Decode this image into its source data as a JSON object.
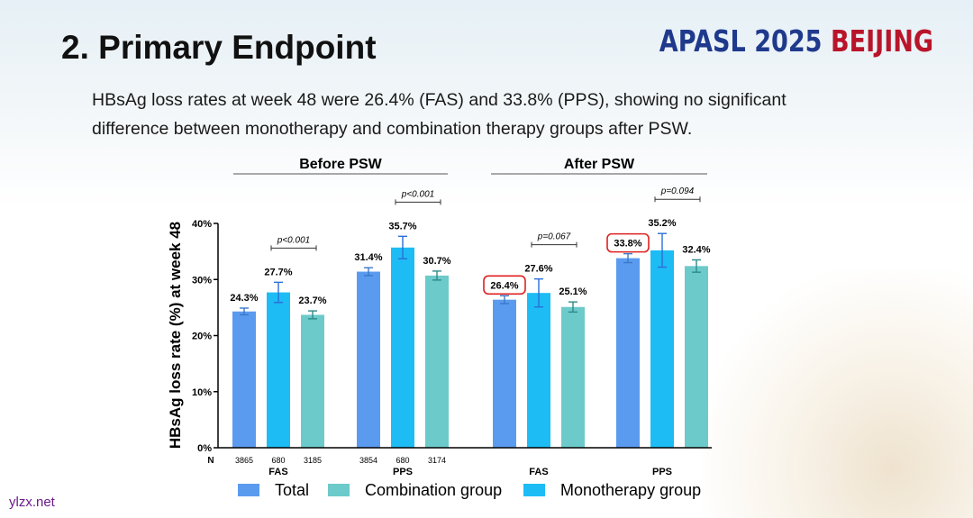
{
  "slide": {
    "title": "2. Primary Endpoint",
    "logo": {
      "org": "APASL",
      "year": "2025",
      "city": "BEIJING"
    },
    "description": "HBsAg loss rates at week 48 were 26.4% (FAS) and 33.8% (PPS), showing no significant difference between monotherapy and combination therapy groups after PSW.",
    "source": "ylzx.net"
  },
  "colors": {
    "total": "#5b9bef",
    "combination": "#6ccaca",
    "monotherapy": "#1dbcf5",
    "highlight": "#e02020",
    "axis": "#000000"
  },
  "chart_data": {
    "type": "bar",
    "ylabel": "HBsAg loss rate (%) at week 48",
    "ylim": [
      0,
      40
    ],
    "yticks": [
      "0%",
      "10%",
      "20%",
      "30%",
      "40%"
    ],
    "n_label": "N",
    "series": [
      {
        "name": "Total",
        "key": "total"
      },
      {
        "name": "Monotherapy group",
        "key": "monotherapy"
      },
      {
        "name": "Combination group",
        "key": "combination"
      }
    ],
    "legend": [
      "Total",
      "Combination group",
      "Monotherapy group"
    ],
    "sections": [
      {
        "title": "Before PSW",
        "groups": [
          {
            "name": "FAS",
            "pvalue": "p<0.001",
            "bars": [
              {
                "series": "total",
                "value": 24.3,
                "label": "24.3%",
                "err": 0.6,
                "n": "3865"
              },
              {
                "series": "monotherapy",
                "value": 27.7,
                "label": "27.7%",
                "err": 1.8,
                "n": "680"
              },
              {
                "series": "combination",
                "value": 23.7,
                "label": "23.7%",
                "err": 0.7,
                "n": "3185"
              }
            ]
          },
          {
            "name": "PPS",
            "pvalue": "p<0.001",
            "bars": [
              {
                "series": "total",
                "value": 31.4,
                "label": "31.4%",
                "err": 0.7,
                "n": "3854"
              },
              {
                "series": "monotherapy",
                "value": 35.7,
                "label": "35.7%",
                "err": 2.0,
                "n": "680"
              },
              {
                "series": "combination",
                "value": 30.7,
                "label": "30.7%",
                "err": 0.8,
                "n": "3174"
              }
            ]
          }
        ]
      },
      {
        "title": "After PSW",
        "groups": [
          {
            "name": "FAS",
            "pvalue": "p=0.067",
            "bars": [
              {
                "series": "total",
                "value": 26.4,
                "label": "26.4%",
                "err": 0.7,
                "highlight": true
              },
              {
                "series": "monotherapy",
                "value": 27.6,
                "label": "27.6%",
                "err": 2.5
              },
              {
                "series": "combination",
                "value": 25.1,
                "label": "25.1%",
                "err": 0.9
              }
            ]
          },
          {
            "name": "PPS",
            "pvalue": "p=0.094",
            "bars": [
              {
                "series": "total",
                "value": 33.8,
                "label": "33.8%",
                "err": 0.8,
                "highlight": true
              },
              {
                "series": "monotherapy",
                "value": 35.2,
                "label": "35.2%",
                "err": 3.0
              },
              {
                "series": "combination",
                "value": 32.4,
                "label": "32.4%",
                "err": 1.1
              }
            ]
          }
        ]
      }
    ]
  }
}
